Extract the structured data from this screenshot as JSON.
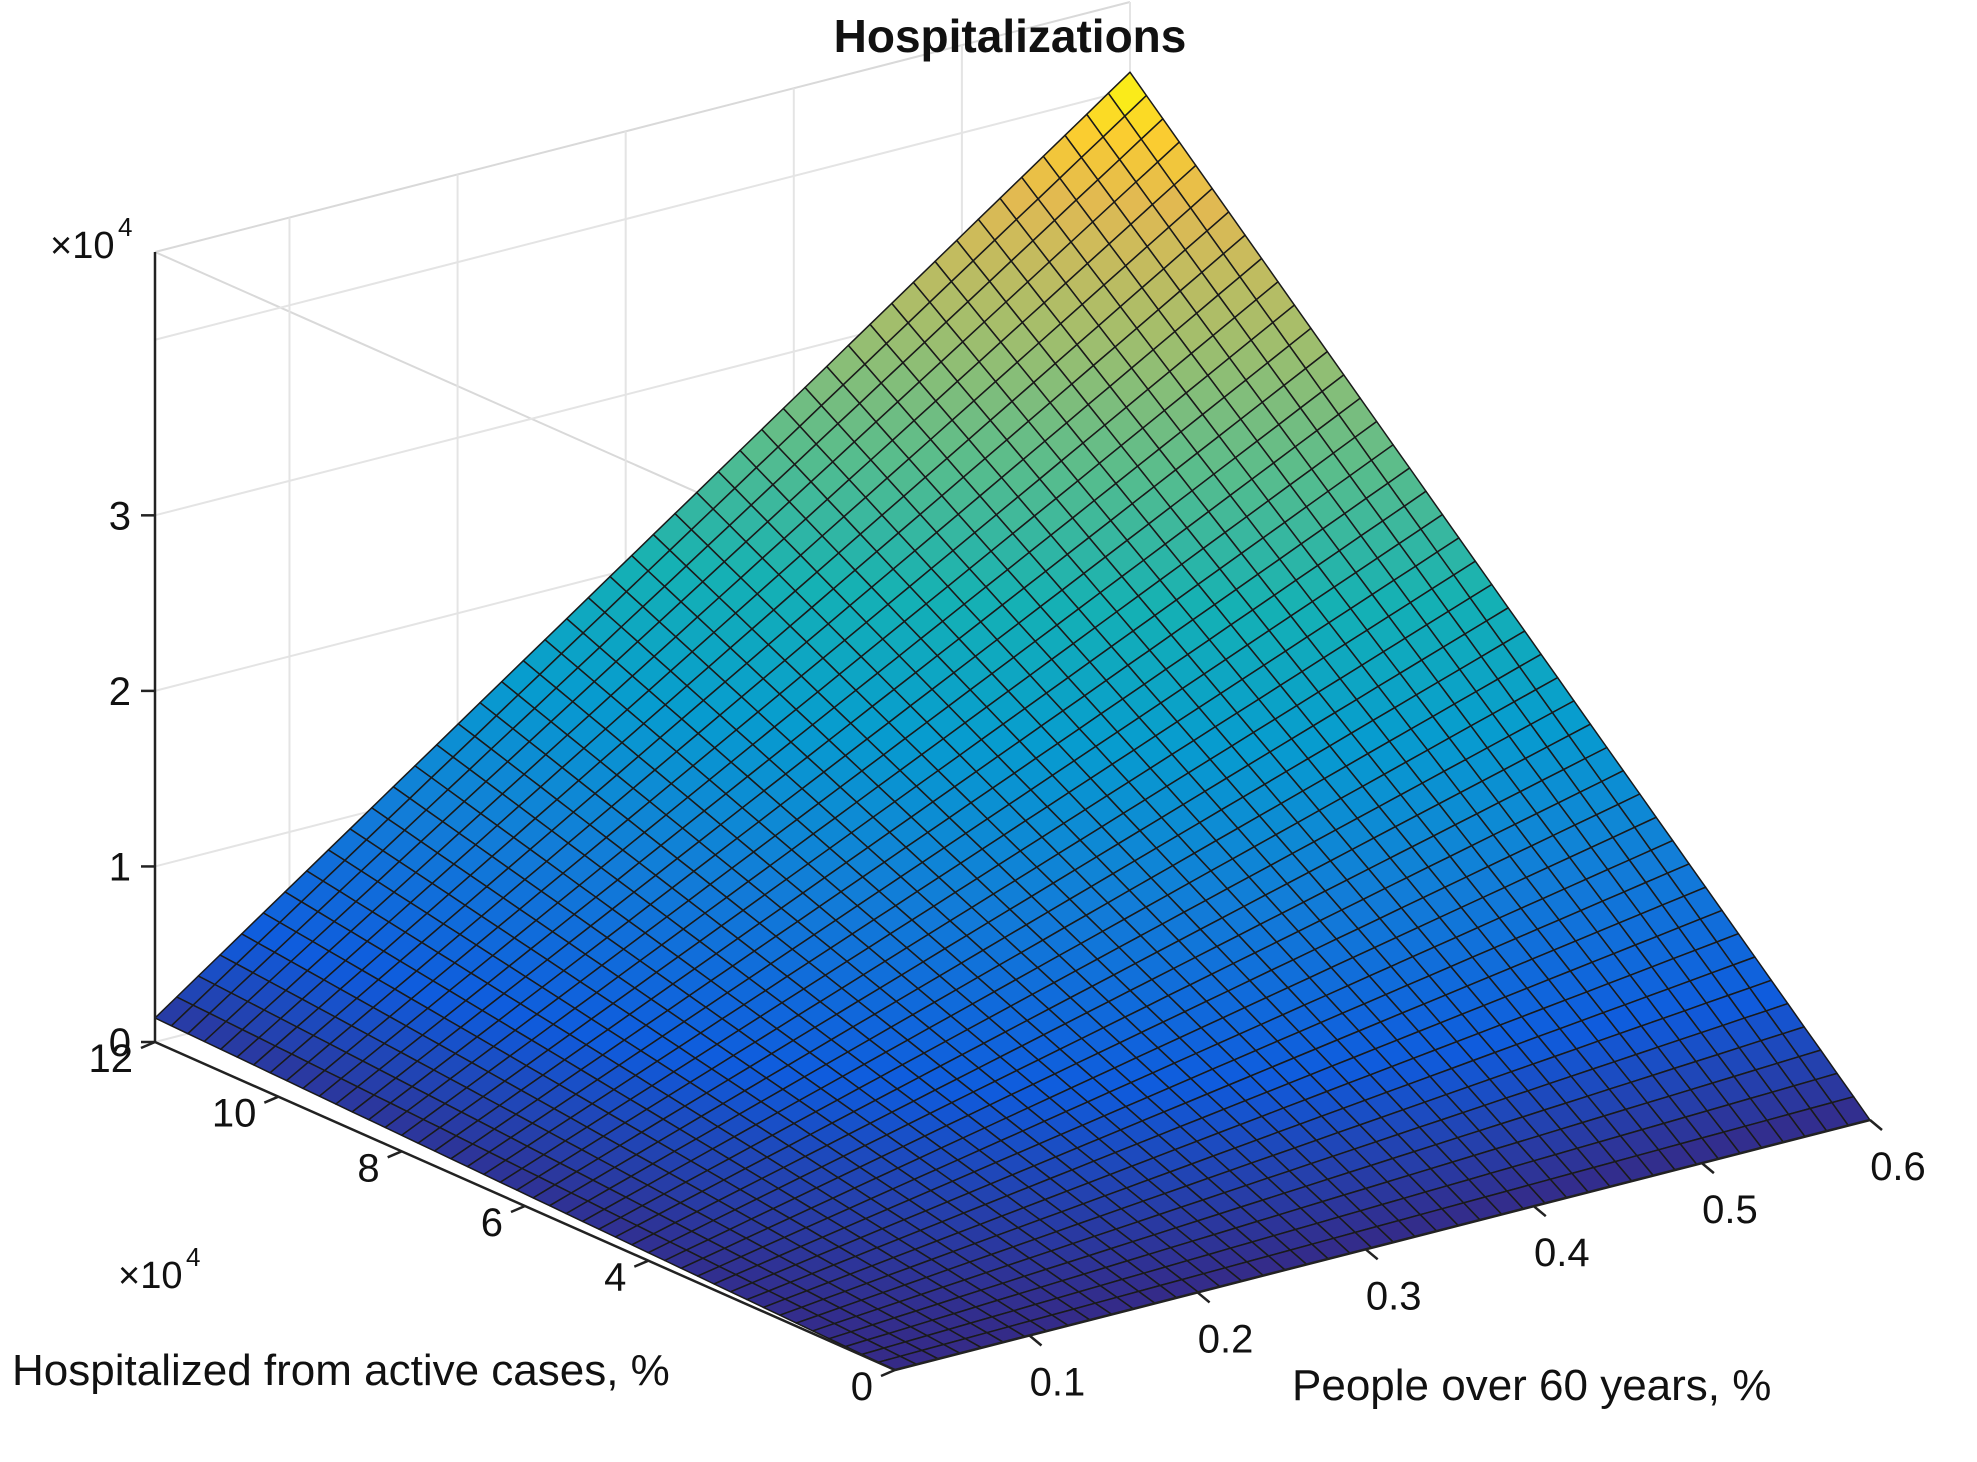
{
  "chart_data": {
    "type": "surface3d",
    "title": "Hospitalizations",
    "xlabel": "People over 60 years, %",
    "ylabel": "Hospitalized from active cases, %",
    "zlabel": "",
    "x_ticks": [
      "0.1",
      "0.2",
      "0.3",
      "0.4",
      "0.5",
      "0.6"
    ],
    "y_ticks": [
      "0",
      "4",
      "6",
      "8",
      "10",
      "12"
    ],
    "z_ticks": [
      "0",
      "1",
      "2",
      "3"
    ],
    "y_multiplier": "×10",
    "y_multiplier_exp": "4",
    "z_multiplier": "×10",
    "z_multiplier_exp": "4",
    "xlim": [
      0.02,
      0.6
    ],
    "ylim": [
      0,
      120000
    ],
    "zlim": [
      0,
      45000
    ],
    "surface_function": "z = x * y (product)",
    "z_max": 41000,
    "grid_resolution": 45,
    "colormap": "parula",
    "grid": true
  }
}
